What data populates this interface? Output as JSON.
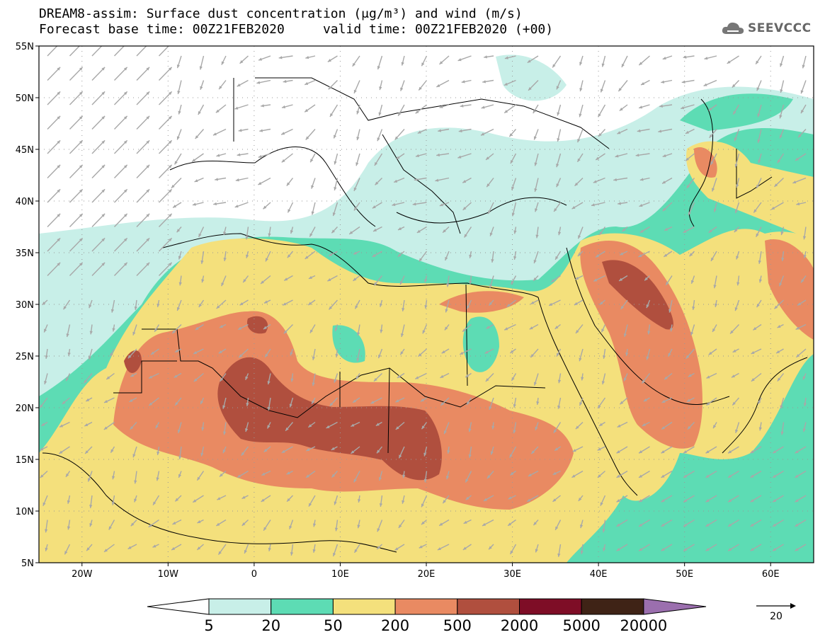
{
  "title": {
    "line1": "DREAM8-assim: Surface dust concentration (μg/m³) and wind (m/s)",
    "line2": "Forecast base time: 00Z21FEB2020     valid time: 00Z21FEB2020 (+00)"
  },
  "logo": {
    "text": "SEEVCCC",
    "icon": "cloud-icon"
  },
  "map": {
    "lon_range": [
      -25,
      65
    ],
    "lat_range": [
      5,
      55
    ],
    "lat_ticks": [
      "55N",
      "50N",
      "45N",
      "40N",
      "35N",
      "30N",
      "25N",
      "20N",
      "15N",
      "10N",
      "5N"
    ],
    "lon_ticks": [
      "20W",
      "10W",
      "0",
      "10E",
      "20E",
      "30E",
      "40E",
      "50E",
      "60E"
    ]
  },
  "colorbar": {
    "labels": [
      "5",
      "20",
      "50",
      "200",
      "500",
      "2000",
      "5000",
      "20000"
    ],
    "colors": [
      "#c8efe8",
      "#5ddcb4",
      "#f4e07c",
      "#e98a62",
      "#b04f3e",
      "#7e0d26",
      "#3f2316",
      "#9b6fae"
    ],
    "low_color": "#ffffff"
  },
  "wind_reference": {
    "label": "20"
  }
}
